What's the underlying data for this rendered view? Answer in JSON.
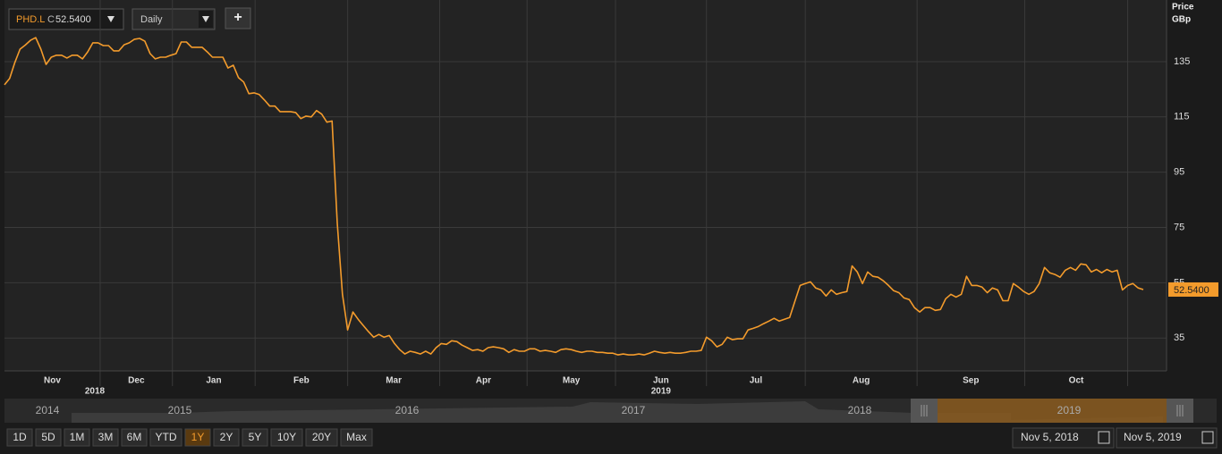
{
  "header": {
    "symbol": "PHD.L",
    "type_code": "C",
    "last_price": {
      "value": 52.54,
      "label": "52.5400"
    },
    "interval": "Daily",
    "add_button": "+"
  },
  "chart_data": {
    "type": "line",
    "y_axis_title": "Price",
    "y_axis_unit": "GBp",
    "color": "#f39b2c",
    "values": [
      126.6,
      128.9,
      134.7,
      139.5,
      141,
      142.7,
      143.7,
      139.5,
      134,
      136.6,
      137.3,
      137.3,
      136.3,
      137.3,
      137.3,
      136,
      138.5,
      141.8,
      141.8,
      140.8,
      140.8,
      138.9,
      138.9,
      141.1,
      141.8,
      143.1,
      143.4,
      142.4,
      137.9,
      136,
      136.6,
      136.6,
      137.3,
      137.9,
      142.1,
      142.1,
      140.2,
      140.2,
      140.2,
      138.5,
      136.6,
      136.6,
      136.6,
      132.7,
      133.7,
      129.2,
      127.6,
      123.4,
      123.7,
      123.1,
      121.1,
      118.9,
      118.9,
      116.9,
      116.9,
      116.9,
      116.6,
      114.4,
      115.3,
      115,
      117.3,
      116,
      113.1,
      113.5,
      76.6,
      50.8,
      37.9,
      44.4,
      41.8,
      39.5,
      37.3,
      35.3,
      36.3,
      35.3,
      35.9,
      33,
      30.8,
      29.2,
      30.2,
      29.8,
      29.2,
      30.2,
      29.2,
      31.5,
      33,
      32.7,
      34,
      33.7,
      32.4,
      31.5,
      30.5,
      30.8,
      30.2,
      31.5,
      31.8,
      31.5,
      31.1,
      29.8,
      30.8,
      30.2,
      30.2,
      31.1,
      31.1,
      30.2,
      30.5,
      30.2,
      29.8,
      30.8,
      31.1,
      30.8,
      30.2,
      29.8,
      30.2,
      30.2,
      29.8,
      29.8,
      29.5,
      29.5,
      28.9,
      29.2,
      28.9,
      28.9,
      29.2,
      28.9,
      29.5,
      30.2,
      29.8,
      29.5,
      29.8,
      29.5,
      29.5,
      29.8,
      30.2,
      30.2,
      30.5,
      35.3,
      34,
      31.8,
      32.7,
      35.3,
      34.4,
      34.7,
      34.7,
      37.9,
      38.5,
      39.2,
      40.2,
      41.1,
      42.1,
      41.1,
      41.8,
      42.4,
      48.2,
      54,
      54.7,
      55.3,
      53.1,
      52.4,
      50.2,
      52.4,
      50.8,
      51.4,
      51.8,
      61.1,
      58.9,
      54.7,
      58.9,
      57.3,
      57,
      55.7,
      54,
      52.1,
      51.4,
      49.5,
      48.9,
      46,
      44.4,
      46,
      46,
      45,
      45.3,
      49.2,
      50.8,
      49.8,
      50.8,
      57.3,
      54,
      54,
      53.4,
      51.4,
      53.1,
      52.4,
      48.5,
      48.5,
      54.7,
      53.4,
      51.8,
      50.8,
      51.8,
      54.7,
      60.5,
      58.6,
      58,
      57,
      59.5,
      60.5,
      59.5,
      61.8,
      61.5,
      58.9,
      59.8,
      58.6,
      59.8,
      58.9,
      59.5,
      52.4,
      54,
      54.7,
      53.1,
      52.54
    ],
    "x_labels": [
      "Nov",
      "Dec",
      "Jan",
      "Feb",
      "Mar",
      "Apr",
      "May",
      "Jun",
      "Jul",
      "Aug",
      "Sep",
      "Oct"
    ],
    "xticks": [
      18.4,
      32.3,
      48.2,
      66,
      83.7,
      100.5,
      117.5,
      135,
      154,
      175.5,
      196.2,
      216
    ],
    "year_labels": [
      "2018",
      "2019"
    ],
    "ylim": [
      23.1,
      157.3
    ],
    "yticks": [
      35,
      55,
      75,
      95,
      115,
      135
    ],
    "grid": true
  },
  "navigator": {
    "years": [
      "2014",
      "2015",
      "2016",
      "2017",
      "2018",
      "2019"
    ]
  },
  "range_buttons": {
    "labels": [
      "1D",
      "5D",
      "1M",
      "3M",
      "6M",
      "YTD",
      "1Y",
      "2Y",
      "5Y",
      "10Y",
      "20Y",
      "Max"
    ],
    "active": "1Y"
  },
  "date_range": {
    "from": "Nov 5, 2018",
    "to": "Nov 5, 2019"
  }
}
